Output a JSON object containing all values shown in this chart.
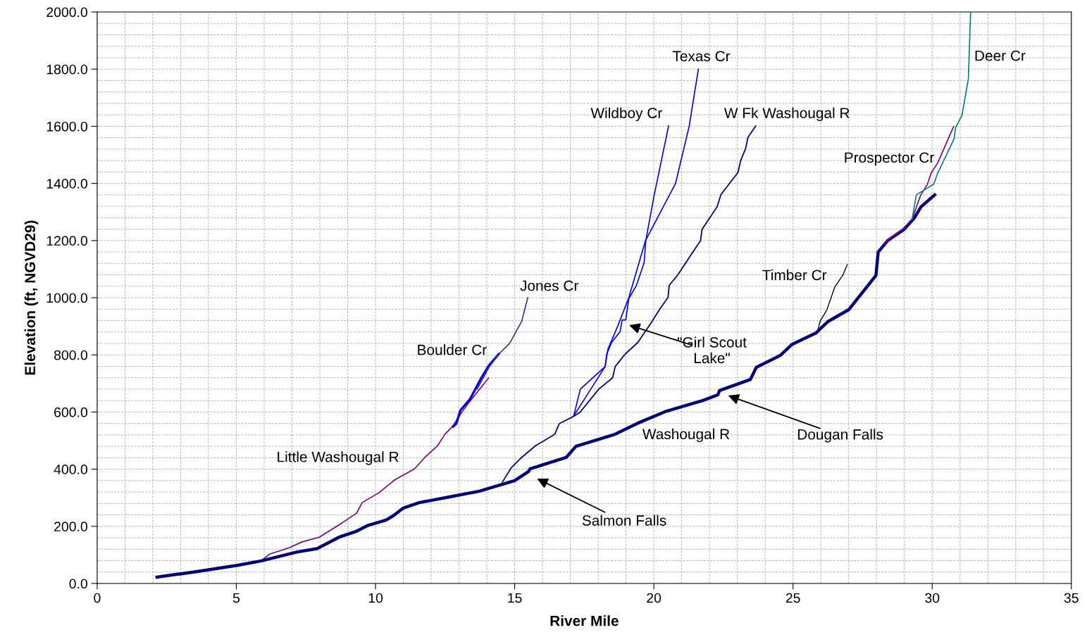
{
  "chart_data": {
    "type": "line",
    "xlabel": "River Mile",
    "ylabel": "Elevation (ft, NGVD29)",
    "xlim": [
      0,
      35
    ],
    "xticks": [
      0,
      5,
      10,
      15,
      20,
      25,
      30,
      35
    ],
    "ylim": [
      0,
      2000
    ],
    "yticks": [
      {
        "value": 0,
        "label": "0.0"
      },
      {
        "value": 200,
        "label": "200.0"
      },
      {
        "value": 400,
        "label": "400.0"
      },
      {
        "value": 600,
        "label": "600.0"
      },
      {
        "value": 800,
        "label": "800.0"
      },
      {
        "value": 1000,
        "label": "1000.0"
      },
      {
        "value": 1200,
        "label": "1200.0"
      },
      {
        "value": 1400,
        "label": "1400.0"
      },
      {
        "value": 1600,
        "label": "1600.0"
      },
      {
        "value": 1800,
        "label": "1800.0"
      },
      {
        "value": 2000,
        "label": "2000.0"
      }
    ],
    "grid": true,
    "legend": false,
    "marker": "none",
    "line_style": "solid",
    "series": [
      {
        "name": "Little Washougal R",
        "color": "#800080",
        "x": [
          5.65,
          5.9,
          6.2,
          6.9,
          7.35,
          7.98,
          8.8,
          9.32,
          9.52,
          10.13,
          10.68,
          11.4,
          11.77,
          12.23,
          12.5,
          12.76,
          13.2,
          13.28,
          14.06
        ],
        "values": [
          76,
          80,
          103,
          125,
          145,
          162,
          212,
          246,
          283,
          318,
          362,
          401,
          441,
          482,
          523,
          549,
          613,
          624,
          719
        ]
      },
      {
        "name": "Boulder Cr",
        "color": "#0000ff",
        "x": [
          12.79,
          12.9,
          13.05,
          13.4,
          13.8,
          14.06,
          14.43
        ],
        "values": [
          549,
          559,
          606,
          646,
          719,
          761,
          803
        ]
      },
      {
        "name": "Jones Cr",
        "color": "#333399",
        "x": [
          13.65,
          14.1,
          14.43,
          14.82,
          15.25,
          15.47
        ],
        "values": [
          680,
          760,
          803,
          840,
          917,
          1000
        ]
      },
      {
        "name": "W Fk Washougal R",
        "color": "#000080",
        "x": [
          14.56,
          14.87,
          15.25,
          15.75,
          16.44,
          16.6,
          17.1,
          17.35,
          18.02,
          18.52,
          18.61,
          18.97,
          19.42,
          19.88,
          20.2,
          20.51,
          20.55,
          20.87,
          21.37,
          21.68,
          21.73,
          22.27,
          22.41,
          23.02,
          23.12,
          23.3,
          23.38,
          23.66
        ],
        "values": [
          355,
          404,
          441,
          482,
          522,
          559,
          584,
          599,
          680,
          720,
          759,
          803,
          843,
          909,
          958,
          1001,
          1043,
          1081,
          1155,
          1200,
          1239,
          1318,
          1361,
          1438,
          1480,
          1523,
          1561,
          1601
        ]
      },
      {
        "name": "Wildboy Cr",
        "color": "#0000ff",
        "x": [
          17.12,
          17.36,
          18.25,
          18.31,
          18.48,
          18.79,
          18.86,
          18.99,
          19.1,
          19.37,
          19.65,
          19.71,
          20.0,
          20.53
        ],
        "values": [
          586,
          680,
          759,
          803,
          843,
          882,
          922,
          922,
          997,
          1042,
          1122,
          1199,
          1353,
          1601
        ]
      },
      {
        "name": "Texas Cr",
        "color": "#0000ff",
        "x": [
          17.12,
          18.25,
          18.35,
          18.7,
          19.1,
          19.7,
          20.78,
          21.27,
          21.6
        ],
        "values": [
          586,
          759,
          820,
          900,
          1000,
          1200,
          1400,
          1600,
          1800
        ]
      },
      {
        "name": "Timber Cr",
        "color": "#000000",
        "x": [
          25.9,
          25.97,
          26.21,
          26.5,
          26.79,
          26.95
        ],
        "values": [
          889,
          917,
          956,
          1037,
          1079,
          1116
        ]
      },
      {
        "name": "Prospector Cr",
        "color": "#800080",
        "x": [
          28.31,
          28.34,
          28.89,
          29.28,
          29.58,
          29.83,
          29.96,
          30.2,
          30.77
        ],
        "values": [
          1182,
          1197,
          1235,
          1275,
          1358,
          1397,
          1436,
          1472,
          1599
        ]
      },
      {
        "name": "Deer Cr",
        "color": "#008080",
        "x": [
          29.28,
          29.43,
          30.06,
          30.19,
          30.79,
          30.84,
          31.07,
          31.3,
          31.38
        ],
        "values": [
          1275,
          1360,
          1398,
          1434,
          1557,
          1595,
          1638,
          1766,
          2000
        ]
      },
      {
        "name": "Washougal R",
        "color": "#000080",
        "x": [
          2.15,
          3.6,
          5.07,
          5.9,
          7.17,
          7.9,
          8.69,
          9.3,
          9.7,
          10.38,
          10.64,
          11.0,
          11.57,
          12.66,
          13.73,
          15.0,
          15.5,
          15.55,
          16.85,
          17.2,
          18.6,
          19.4,
          20.4,
          21.75,
          22.3,
          22.36,
          23.47,
          23.68,
          24.54,
          24.97,
          25.83,
          26.26,
          27.0,
          27.98,
          28.06,
          28.4,
          29.0,
          29.35,
          29.6,
          30.09
        ],
        "values": [
          22,
          42,
          64,
          79,
          110,
          122,
          162,
          182,
          202,
          222,
          237,
          264,
          283,
          303,
          323,
          360,
          392,
          401,
          441,
          480,
          522,
          560,
          601,
          640,
          660,
          675,
          714,
          756,
          798,
          837,
          877,
          917,
          958,
          1078,
          1160,
          1200,
          1240,
          1278,
          1318,
          1360
        ]
      }
    ],
    "annotations": [
      "\"Girl Scout\nLake\"",
      "Salmon Falls",
      "Dougan Falls"
    ]
  }
}
